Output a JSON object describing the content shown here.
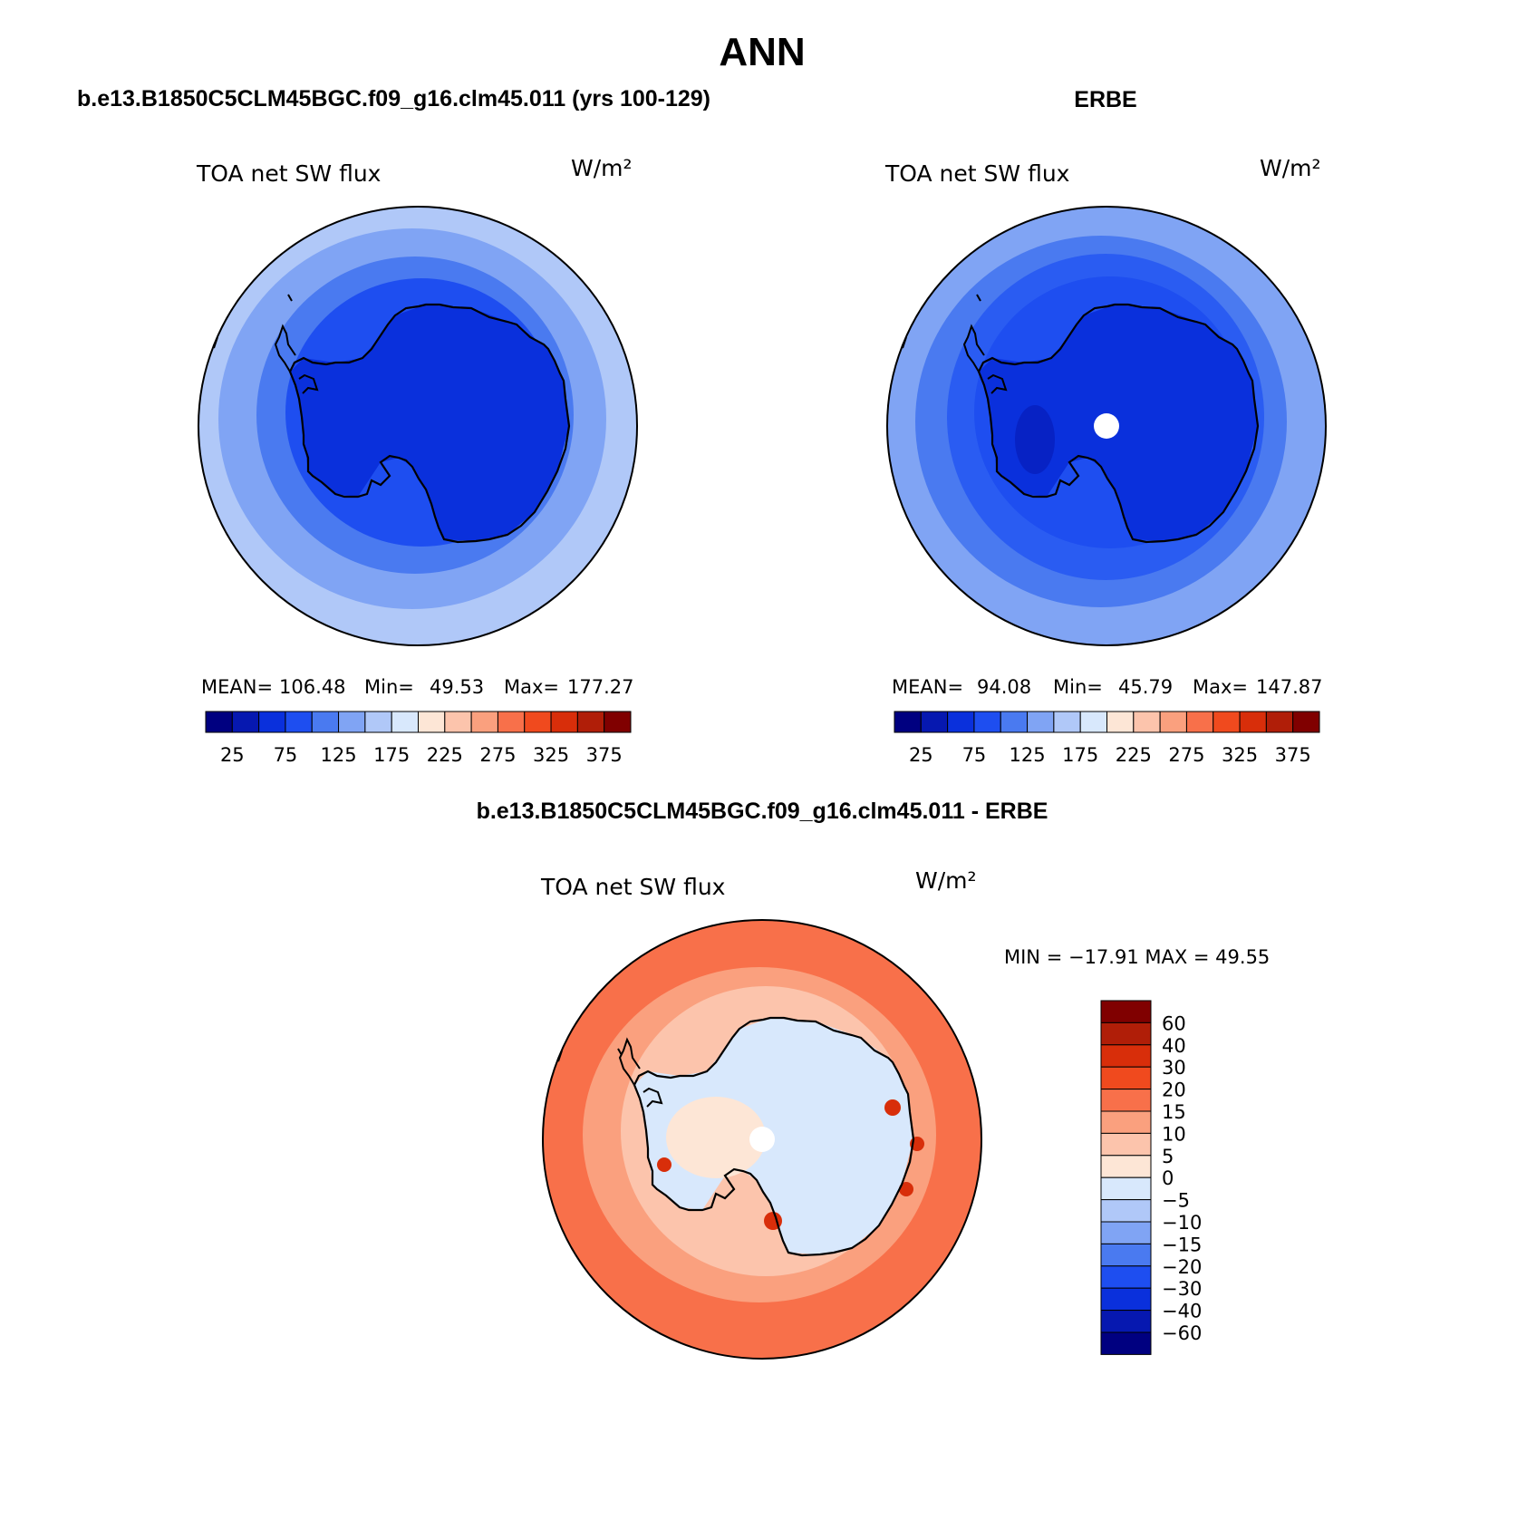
{
  "title": "ANN",
  "panels": [
    {
      "heading": "b.e13.B1850C5CLM45BGC.f09_g16.clm45.011 (yrs 100-129)",
      "label": "TOA net SW flux",
      "units": "W/m²",
      "stats": {
        "mean_label": "MEAN=",
        "mean": "106.48",
        "min_label": "Min=",
        "min": "49.53",
        "max_label": "Max=",
        "max": "177.27"
      },
      "fill": {
        "outer": "#b0c8f8",
        "ring2": "#80a4f4",
        "ring3": "#4a7af0",
        "ring4": "#1e4ef0",
        "ice": "#0a30dc"
      }
    },
    {
      "heading": "ERBE",
      "label": "TOA net SW flux",
      "units": "W/m²",
      "stats": {
        "mean_label": "MEAN=",
        "mean": "94.08",
        "min_label": "Min=",
        "min": "45.79",
        "max_label": "Max=",
        "max": "147.87"
      },
      "fill": {
        "outer": "#80a4f4",
        "ring2": "#4a7af0",
        "ring3": "#2a5cf2",
        "ring4": "#1e4ef0",
        "ice": "#0a30dc"
      }
    }
  ],
  "abs_colorbar": {
    "colors": [
      "#000080",
      "#0618b0",
      "#0a30dc",
      "#1e4ef0",
      "#4a7af0",
      "#80a4f4",
      "#b0c8f8",
      "#d8e8fc",
      "#fde6d6",
      "#fcc4ac",
      "#faa07e",
      "#f8704a",
      "#f04a1e",
      "#d82e0a",
      "#b01e08",
      "#800000"
    ],
    "labels": [
      "25",
      "75",
      "125",
      "175",
      "225",
      "275",
      "325",
      "375"
    ]
  },
  "diff": {
    "heading": "b.e13.B1850C5CLM45BGC.f09_g16.clm45.011 - ERBE",
    "label": "TOA net SW flux",
    "units": "W/m²",
    "minmax": "MIN = −17.91 MAX =   49.55",
    "colorbar": {
      "colors": [
        "#800000",
        "#b01e08",
        "#d82e0a",
        "#f04a1e",
        "#f8704a",
        "#faa07e",
        "#fcc4ac",
        "#fde6d6",
        "#d8e8fc",
        "#b0c8f8",
        "#80a4f4",
        "#4a7af0",
        "#1e4ef0",
        "#0a30dc",
        "#0618b0",
        "#000080"
      ],
      "labels": [
        "60",
        "40",
        "30",
        "20",
        "15",
        "10",
        "5",
        "0",
        "−5",
        "−10",
        "−15",
        "−20",
        "−30",
        "−40",
        "−60"
      ]
    },
    "fill": {
      "outer": "#f8704a",
      "ring2": "#faa07e",
      "ring3": "#fcc4ac",
      "land": "#d8e8fc",
      "land2": "#fde6d6",
      "spot": "#d82e0a"
    }
  }
}
